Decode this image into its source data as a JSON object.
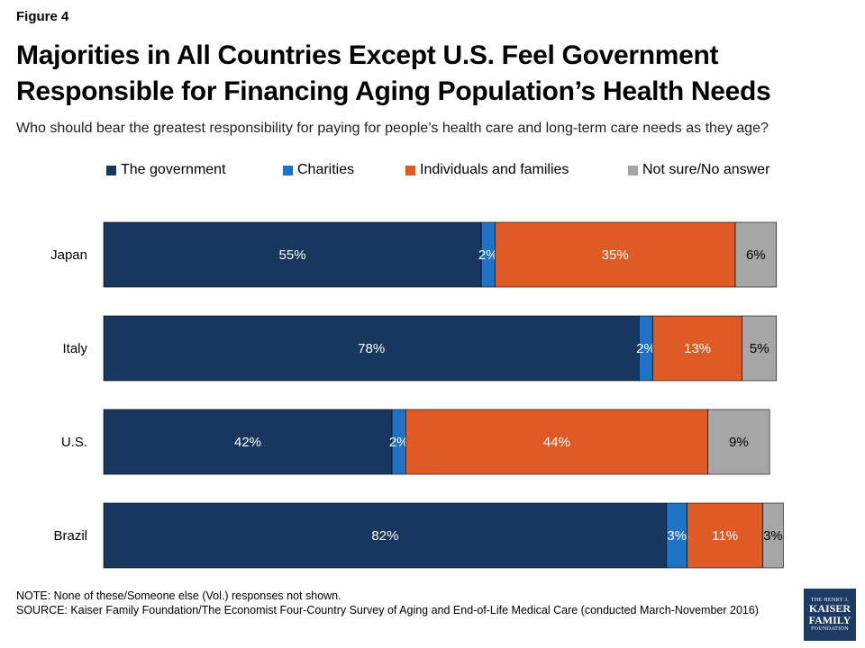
{
  "figure_label": "Figure 4",
  "title": "Majorities in All Countries Except U.S. Feel Government Responsible for Financing Aging Population’s Health Needs",
  "subtitle": "Who should bear the greatest responsibility for paying for people’s health care and long-term care needs as they age?",
  "chart_data": {
    "type": "bar",
    "orientation": "horizontal",
    "stacked": true,
    "categories": [
      "Japan",
      "Italy",
      "U.S.",
      "Brazil"
    ],
    "series": [
      {
        "name": "The government",
        "color": "#17375e",
        "values": [
          55,
          78,
          42,
          82
        ],
        "labels": [
          "55%",
          "78%",
          "42%",
          "82%"
        ]
      },
      {
        "name": "Charities",
        "color": "#1f73c6",
        "values": [
          2,
          2,
          2,
          3
        ],
        "labels": [
          "2%",
          "2%",
          "2%",
          "3%"
        ]
      },
      {
        "name": "Individuals and families",
        "color": "#e05a25",
        "values": [
          35,
          13,
          44,
          11
        ],
        "labels": [
          "35%",
          "13%",
          "44%",
          "11%"
        ]
      },
      {
        "name": "Not sure/No answer",
        "color": "#a6a6a6",
        "values": [
          6,
          5,
          9,
          3
        ],
        "labels": [
          "6%",
          "5%",
          "9%",
          "3%"
        ]
      }
    ],
    "xlim": [
      0,
      100
    ],
    "grid": false,
    "legend_position": "top"
  },
  "note": "NOTE: None of these/Someone else (Vol.) responses not shown.",
  "source": "SOURCE: Kaiser Family Foundation/The Economist Four-Country Survey of Aging and End-of-Life Medical Care (conducted March-November 2016)",
  "logo": {
    "line1": "THE HENRY J.",
    "line2": "KAISER",
    "line3": "FAMILY",
    "line4": "FOUNDATION"
  }
}
